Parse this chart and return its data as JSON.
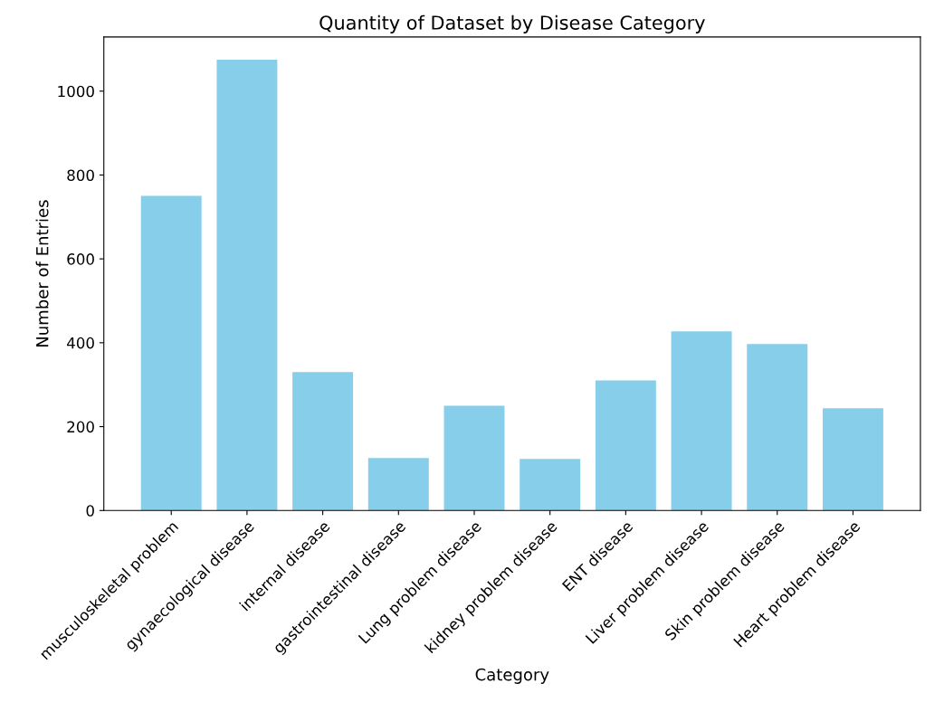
{
  "chart_data": {
    "type": "bar",
    "title": "Quantity of Dataset by Disease Category",
    "xlabel": "Category",
    "ylabel": "Number of Entries",
    "categories": [
      "musculoskeletal problem",
      "gynaecological disease",
      "internal disease",
      "gastrointestinal disease",
      "Lung problem disease",
      "kidney problem disease",
      "ENT disease",
      "Liver problem disease",
      "Skin problem disease",
      "Heart problem disease"
    ],
    "values": [
      750,
      1075,
      330,
      125,
      250,
      123,
      310,
      427,
      397,
      244
    ],
    "color": "#87ceeb",
    "ylim": [
      0,
      1129
    ],
    "yticks": [
      0,
      200,
      400,
      600,
      800,
      1000
    ],
    "grid": false
  }
}
